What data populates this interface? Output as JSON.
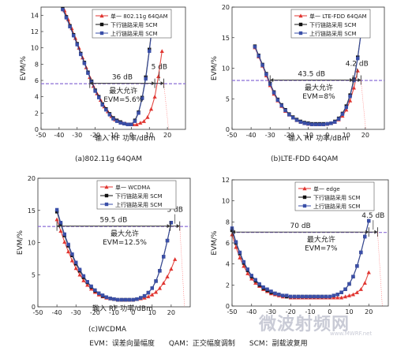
{
  "footer": "EVM：误差向量幅度　　QAM：正交幅度调制　　SCM：副载波复用",
  "watermark": {
    "text": "微波射频网",
    "url": "www.MWRF.net"
  },
  "colors": {
    "series1": "#e03530",
    "series2": "#111111",
    "series3": "#3a4fa8",
    "limit": "#8b6fd6",
    "threshold": "#ff6666",
    "arrow": "#333333"
  },
  "chart_data": [
    {
      "type": "line",
      "caption": "(a)802.11g 64QAM",
      "xlabel": "输入 RF 功率/dBm",
      "ylabel": "EVM/%",
      "xlim": [
        -50,
        30
      ],
      "ylim": [
        0,
        15
      ],
      "xticks": [
        -50,
        -40,
        -30,
        -20,
        -10,
        0,
        10,
        20
      ],
      "yticks": [
        0,
        2,
        4,
        6,
        8,
        10,
        12,
        14
      ],
      "legend": {
        "position": "top-right",
        "labels": [
          "单一 802.11g 64QAM",
          "下行链路采用 SCM",
          "上行链路采用 SCM"
        ]
      },
      "series": [
        {
          "name": "单一 802.11g 64QAM",
          "x": [
            -37,
            -35,
            -33,
            -31,
            -29,
            -27,
            -25,
            -23,
            -21,
            -19,
            -17,
            -15,
            -13,
            -11,
            -9,
            -7,
            -5,
            -3,
            -1,
            1,
            3,
            5,
            7,
            9,
            11,
            13,
            15,
            17
          ],
          "y": [
            14.6,
            13.5,
            12.4,
            11.2,
            10,
            8.8,
            7.6,
            6.4,
            5.3,
            4.4,
            3.6,
            2.8,
            2.2,
            1.6,
            1.2,
            1,
            0.8,
            0.7,
            0.6,
            0.6,
            0.6,
            0.8,
            1,
            1.5,
            2.5,
            4,
            6.5,
            9.6
          ]
        },
        {
          "name": "下行链路采用 SCM",
          "x": [
            -38,
            -36,
            -34,
            -32,
            -30,
            -28,
            -26,
            -24,
            -22,
            -20,
            -18,
            -16,
            -14,
            -12,
            -10,
            -8,
            -6,
            -4,
            -2,
            0,
            2,
            4,
            6,
            8,
            10,
            12
          ],
          "y": [
            14.8,
            13.8,
            12.7,
            11.6,
            10.5,
            9.3,
            8.2,
            7,
            5.9,
            4.8,
            4,
            3.1,
            2.5,
            1.9,
            1.4,
            1.1,
            0.9,
            0.7,
            0.6,
            0.6,
            1.1,
            2.1,
            3.9,
            6.4,
            9.8,
            13.6
          ]
        },
        {
          "name": "上行链路采用 SCM",
          "x": [
            -38,
            -36,
            -34,
            -32,
            -30,
            -28,
            -26,
            -24,
            -22,
            -20,
            -18,
            -16,
            -14,
            -12,
            -10,
            -8,
            -6,
            -4,
            -2,
            0,
            2,
            4,
            6,
            8,
            10,
            12
          ],
          "y": [
            14.7,
            13.7,
            12.6,
            11.5,
            10.4,
            9.2,
            8.1,
            6.9,
            5.8,
            4.7,
            3.9,
            3,
            2.4,
            1.8,
            1.3,
            1,
            0.8,
            0.7,
            0.6,
            0.6,
            1,
            2,
            3.8,
            6.2,
            9.6,
            13.4
          ]
        }
      ],
      "limit_line": {
        "y": 5.6,
        "label": "最大允许",
        "value_label": "EVM=5.6%"
      },
      "range_arrow": {
        "x1": -23,
        "x2": 13,
        "label": "36 dB"
      },
      "delta_arrow": {
        "x1": 13,
        "x2": 18,
        "label": "5 dB"
      }
    },
    {
      "type": "line",
      "caption": "(b)LTE-FDD 64QAM",
      "xlabel": "输入 RF 功率/dBm",
      "ylabel": "EVM/%",
      "xlim": [
        -50,
        30
      ],
      "ylim": [
        0,
        20
      ],
      "xticks": [
        -50,
        -40,
        -30,
        -20,
        -10,
        0,
        10,
        20
      ],
      "yticks": [
        0,
        5,
        10,
        15,
        20
      ],
      "legend": {
        "position": "top-right",
        "labels": [
          "单一 LTE-FDD 64QAM",
          "下行链路采用 SCM",
          "上行链路采用 SCM"
        ]
      },
      "series": [
        {
          "name": "单一 LTE-FDD 64QAM",
          "x": [
            -38,
            -36,
            -34,
            -32,
            -30,
            -28,
            -26,
            -24,
            -22,
            -20,
            -18,
            -16,
            -14,
            -12,
            -10,
            -8,
            -6,
            -4,
            -2,
            0,
            2,
            4,
            6,
            8,
            10,
            12,
            14,
            16
          ],
          "y": [
            13.4,
            11.9,
            10.4,
            8.8,
            7.2,
            5.8,
            4.7,
            3.8,
            3,
            2.4,
            1.9,
            1.5,
            1.2,
            1,
            0.9,
            0.8,
            0.8,
            0.8,
            0.8,
            0.9,
            1,
            1.2,
            1.6,
            2.2,
            3.2,
            4.7,
            6.8,
            9.6
          ]
        },
        {
          "name": "下行链路采用 SCM",
          "x": [
            -38,
            -36,
            -34,
            -32,
            -30,
            -28,
            -26,
            -24,
            -22,
            -20,
            -18,
            -16,
            -14,
            -12,
            -10,
            -8,
            -6,
            -4,
            -2,
            0,
            2,
            4,
            6,
            8,
            10,
            12,
            14,
            16,
            18
          ],
          "y": [
            13.6,
            12.1,
            10.6,
            9.1,
            7.5,
            6.1,
            4.9,
            4,
            3.2,
            2.5,
            2,
            1.6,
            1.3,
            1.1,
            1,
            0.9,
            0.9,
            0.9,
            0.9,
            0.9,
            1,
            1.3,
            1.8,
            2.6,
            3.8,
            5.6,
            8.2,
            11.8,
            16.4
          ]
        },
        {
          "name": "上行链路采用 SCM",
          "x": [
            -38,
            -36,
            -34,
            -32,
            -30,
            -28,
            -26,
            -24,
            -22,
            -20,
            -18,
            -16,
            -14,
            -12,
            -10,
            -8,
            -6,
            -4,
            -2,
            0,
            2,
            4,
            6,
            8,
            10,
            12,
            14,
            16,
            18
          ],
          "y": [
            13.5,
            12,
            10.5,
            9,
            7.4,
            6,
            4.8,
            3.9,
            3.1,
            2.4,
            1.9,
            1.5,
            1.2,
            1,
            0.9,
            0.8,
            0.8,
            0.8,
            0.8,
            0.9,
            1,
            1.2,
            1.7,
            2.5,
            3.6,
            5.4,
            8,
            11.6,
            16.2
          ]
        }
      ],
      "limit_line": {
        "y": 8,
        "label": "最大允许",
        "value_label": "EVM=8%"
      },
      "range_arrow": {
        "x1": -30,
        "x2": 13.5,
        "label": "43.5 dB"
      },
      "delta_arrow": {
        "x1": 13.5,
        "x2": 17.7,
        "label": "4.2 dB"
      }
    },
    {
      "type": "line",
      "caption": "(c)WCDMA",
      "xlabel": "输入 RF 功率/dBm",
      "ylabel": "EVM/%",
      "xlim": [
        -50,
        30
      ],
      "ylim": [
        0,
        20
      ],
      "xticks": [
        -50,
        -40,
        -30,
        -20,
        -10,
        0,
        10,
        20
      ],
      "yticks": [
        0,
        5,
        10,
        15,
        20
      ],
      "legend": {
        "position": "top-right",
        "labels": [
          "单一 WCDMA",
          "下行链路采用 SCM",
          "上行链路采用 SCM"
        ]
      },
      "series": [
        {
          "name": "单一 WCDMA",
          "x": [
            -40,
            -38,
            -36,
            -34,
            -32,
            -30,
            -28,
            -26,
            -24,
            -22,
            -20,
            -18,
            -16,
            -14,
            -12,
            -10,
            -8,
            -6,
            -4,
            -2,
            0,
            2,
            4,
            6,
            8,
            10,
            12,
            14,
            16,
            18,
            20,
            22
          ],
          "y": [
            13.6,
            11.8,
            10.1,
            8.6,
            7.2,
            6,
            5,
            4.1,
            3.4,
            2.8,
            2.3,
            1.9,
            1.6,
            1.4,
            1.3,
            1.2,
            1.1,
            1.1,
            1.1,
            1.1,
            1.1,
            1.2,
            1.3,
            1.4,
            1.6,
            1.9,
            2.3,
            2.9,
            3.7,
            4.7,
            5.9,
            7.4
          ]
        },
        {
          "name": "下行链路采用 SCM",
          "x": [
            -40,
            -38,
            -36,
            -34,
            -32,
            -30,
            -28,
            -26,
            -24,
            -22,
            -20,
            -18,
            -16,
            -14,
            -12,
            -10,
            -8,
            -6,
            -4,
            -2,
            0,
            2,
            4,
            6,
            8,
            10,
            12,
            14,
            16,
            18,
            20
          ],
          "y": [
            14.8,
            12.9,
            11.1,
            9.5,
            8,
            6.7,
            5.6,
            4.6,
            3.8,
            3.1,
            2.5,
            2.1,
            1.7,
            1.5,
            1.3,
            1.2,
            1.1,
            1.1,
            1.1,
            1.1,
            1.1,
            1.2,
            1.4,
            1.7,
            2.2,
            2.9,
            4,
            5.6,
            7.8,
            10.3,
            13.1
          ]
        },
        {
          "name": "上行链路采用 SCM",
          "x": [
            -40,
            -38,
            -36,
            -34,
            -32,
            -30,
            -28,
            -26,
            -24,
            -22,
            -20,
            -18,
            -16,
            -14,
            -12,
            -10,
            -8,
            -6,
            -4,
            -2,
            0,
            2,
            4,
            6,
            8,
            10,
            12,
            14,
            16,
            18,
            20
          ],
          "y": [
            15.1,
            13.1,
            11.3,
            9.7,
            8.2,
            6.9,
            5.8,
            4.8,
            3.9,
            3.2,
            2.6,
            2.1,
            1.8,
            1.5,
            1.3,
            1.2,
            1.1,
            1.1,
            1.1,
            1.1,
            1.1,
            1.2,
            1.4,
            1.7,
            2.2,
            2.9,
            4,
            5.6,
            7.8,
            10.3,
            13.1
          ]
        }
      ],
      "limit_line": {
        "y": 12.5,
        "label": "最大允许",
        "value_label": "EVM=12.5%"
      },
      "range_arrow": {
        "x1": -40,
        "x2": 19.5,
        "label": "59.5 dB"
      },
      "delta_arrow": {
        "x1": 19.5,
        "x2": 24.5,
        "label": "5 dB"
      }
    },
    {
      "type": "line",
      "caption": "",
      "xlabel": "",
      "ylabel": "EVM/%",
      "xlim": [
        -50,
        30
      ],
      "ylim": [
        0,
        12
      ],
      "xticks": [
        -50,
        -40,
        -30,
        -20,
        -10,
        0,
        10,
        20
      ],
      "yticks": [
        0,
        2,
        4,
        6,
        8,
        10,
        12
      ],
      "legend": {
        "position": "top-right",
        "labels": [
          "单一 edge",
          "下行链路采用 SCM",
          "上行链路采用 SCM"
        ]
      },
      "series": [
        {
          "name": "单一 edge",
          "x": [
            -50,
            -48,
            -46,
            -44,
            -42,
            -40,
            -38,
            -36,
            -34,
            -32,
            -30,
            -28,
            -26,
            -24,
            -22,
            -20,
            -18,
            -16,
            -14,
            -12,
            -10,
            -8,
            -6,
            -4,
            -2,
            0,
            2,
            4,
            6,
            8,
            10,
            12,
            14,
            16,
            18,
            20
          ],
          "y": [
            6.8,
            5.6,
            4.6,
            3.8,
            3.1,
            2.6,
            2.2,
            1.9,
            1.6,
            1.4,
            1.2,
            1.1,
            1,
            0.9,
            0.9,
            0.8,
            0.8,
            0.8,
            0.8,
            0.8,
            0.8,
            0.8,
            0.8,
            0.8,
            0.8,
            0.8,
            0.8,
            0.8,
            0.8,
            0.9,
            1,
            1.1,
            1.3,
            1.6,
            2.2,
            3.2
          ]
        },
        {
          "name": "下行链路采用 SCM",
          "x": [
            -50,
            -48,
            -46,
            -44,
            -42,
            -40,
            -38,
            -36,
            -34,
            -32,
            -30,
            -28,
            -26,
            -24,
            -22,
            -20,
            -18,
            -16,
            -14,
            -12,
            -10,
            -8,
            -6,
            -4,
            -2,
            0,
            2,
            4,
            6,
            8,
            10,
            12,
            14,
            16,
            18,
            20
          ],
          "y": [
            7.2,
            6,
            5,
            4.1,
            3.4,
            2.8,
            2.4,
            2,
            1.7,
            1.5,
            1.3,
            1.2,
            1.1,
            1,
            0.9,
            0.9,
            0.9,
            0.9,
            0.9,
            0.9,
            0.9,
            0.9,
            0.9,
            0.9,
            0.9,
            0.9,
            1,
            1.1,
            1.3,
            1.6,
            2.1,
            2.8,
            3.8,
            5.1,
            6.6,
            8.1
          ]
        },
        {
          "name": "上行链路采用 SCM",
          "x": [
            -50,
            -48,
            -46,
            -44,
            -42,
            -40,
            -38,
            -36,
            -34,
            -32,
            -30,
            -28,
            -26,
            -24,
            -22,
            -20,
            -18,
            -16,
            -14,
            -12,
            -10,
            -8,
            -6,
            -4,
            -2,
            0,
            2,
            4,
            6,
            8,
            10,
            12,
            14,
            16,
            18,
            20
          ],
          "y": [
            7.4,
            6.1,
            5.1,
            4.2,
            3.5,
            2.9,
            2.5,
            2.1,
            1.8,
            1.6,
            1.4,
            1.2,
            1.1,
            1,
            1,
            0.9,
            0.9,
            0.9,
            0.9,
            0.9,
            0.9,
            0.9,
            0.9,
            0.9,
            0.9,
            0.9,
            1,
            1.1,
            1.3,
            1.6,
            2.1,
            2.8,
            3.8,
            5.1,
            6.6,
            8.1
          ]
        }
      ],
      "limit_line": {
        "y": 7,
        "label": "最大允许",
        "value_label": "EVM=7%"
      },
      "range_arrow": {
        "x1": -50,
        "x2": 20,
        "label": "70 dB"
      },
      "delta_arrow": {
        "x1": 20,
        "x2": 24.5,
        "label": "4.5 dB"
      }
    }
  ]
}
